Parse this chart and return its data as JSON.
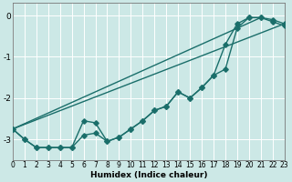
{
  "xlabel": "Humidex (Indice chaleur)",
  "background_color": "#cce8e6",
  "grid_color": "#ffffff",
  "line_color": "#1a6e6a",
  "series": {
    "line1_x": [
      0,
      1,
      2,
      3,
      4,
      5,
      6,
      7,
      8,
      9,
      10,
      11,
      12,
      13,
      14,
      15,
      16,
      17,
      18,
      19,
      20,
      21,
      22,
      23
    ],
    "line1_y": [
      -2.75,
      -3.0,
      -3.2,
      -3.2,
      -3.2,
      -3.2,
      -2.55,
      -2.6,
      -3.05,
      -2.95,
      -2.75,
      -2.55,
      -2.3,
      -2.2,
      -1.85,
      -2.0,
      -1.75,
      -1.45,
      -0.7,
      -0.2,
      -0.05,
      -0.05,
      -0.15,
      -0.25
    ],
    "line2_x": [
      0,
      1,
      2,
      3,
      4,
      5,
      6,
      7,
      8,
      9,
      10,
      11,
      12,
      13,
      14,
      15,
      16,
      17,
      18,
      19,
      20,
      21,
      22,
      23
    ],
    "line2_y": [
      -2.75,
      -3.0,
      -3.2,
      -3.2,
      -3.2,
      -3.2,
      -2.9,
      -2.85,
      -3.05,
      -2.95,
      -2.75,
      -2.55,
      -2.3,
      -2.2,
      -1.85,
      -2.0,
      -1.75,
      -1.45,
      -1.3,
      -0.3,
      -0.05,
      -0.05,
      -0.1,
      -0.2
    ],
    "line3_x": [
      0,
      21
    ],
    "line3_y": [
      -2.75,
      -0.05
    ],
    "line4_x": [
      0,
      23
    ],
    "line4_y": [
      -2.75,
      -0.2
    ]
  },
  "xlim": [
    0,
    23
  ],
  "ylim": [
    -3.5,
    0.3
  ],
  "xticks": [
    0,
    1,
    2,
    3,
    4,
    5,
    6,
    7,
    8,
    9,
    10,
    11,
    12,
    13,
    14,
    15,
    16,
    17,
    18,
    19,
    20,
    21,
    22,
    23
  ],
  "yticks": [
    0,
    -1,
    -2,
    -3
  ],
  "marker": "D",
  "markersize": 2.8,
  "linewidth": 1.0,
  "tick_fontsize": 5.5,
  "xlabel_fontsize": 6.5
}
